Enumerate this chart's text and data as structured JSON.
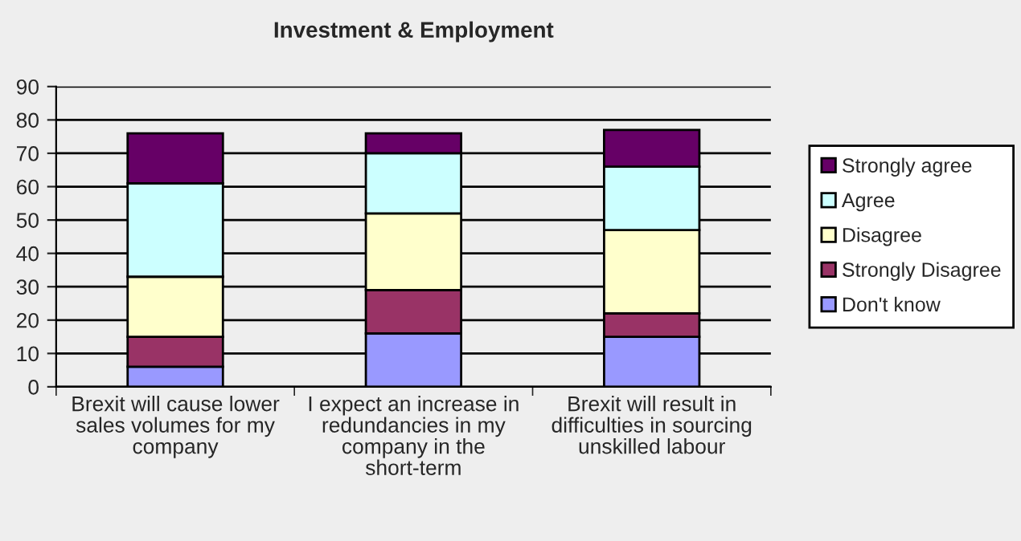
{
  "chart_data": {
    "type": "bar",
    "title": "Investment & Employment",
    "stacked": true,
    "categories": [
      "Brexit will cause lower sales volumes for my company",
      "I expect an increase in redundancies in my company in the short-term",
      "Brexit will result in difficulties in sourcing unskilled labour"
    ],
    "series": [
      {
        "name": "Don't know",
        "color": "#9999ff",
        "values": [
          6,
          16,
          15
        ]
      },
      {
        "name": "Strongly Disagree",
        "color": "#993366",
        "values": [
          9,
          13,
          7
        ]
      },
      {
        "name": "Disagree",
        "color": "#ffffcc",
        "values": [
          18,
          23,
          25
        ]
      },
      {
        "name": "Agree",
        "color": "#ccffff",
        "values": [
          28,
          18,
          19
        ]
      },
      {
        "name": "Strongly agree",
        "color": "#660066",
        "values": [
          15,
          6,
          11
        ]
      }
    ],
    "ylim": [
      0,
      90
    ],
    "yticks": [
      0,
      10,
      20,
      30,
      40,
      50,
      60,
      70,
      80,
      90
    ],
    "grid": "y",
    "legend": "right"
  }
}
